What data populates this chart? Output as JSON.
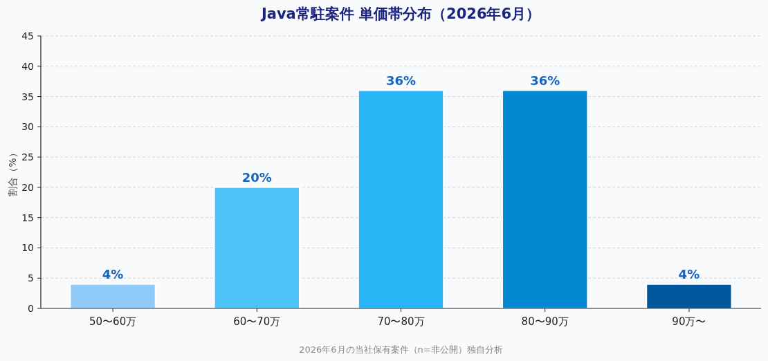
{
  "chart_data": {
    "type": "bar",
    "title": "Java常駐案件 単価帯分布（2026年6月）",
    "ylabel": "割合（%）",
    "annotations": [
      "2026年6月の当社保有案件（n=非公開）独自分析"
    ],
    "categories": [
      "50〜60万",
      "60〜70万",
      "70〜80万",
      "80〜90万",
      "90万〜"
    ],
    "values": [
      4,
      20,
      36,
      36,
      4
    ],
    "colors": [
      "#90caf9",
      "#4fc3f7",
      "#29b6f6",
      "#0288d1",
      "#01579b"
    ],
    "value_labels": [
      "4%",
      "20%",
      "36%",
      "36%",
      "4%"
    ],
    "ylim": [
      0,
      45
    ],
    "yticks": [
      0,
      5,
      10,
      15,
      20,
      25,
      30,
      35,
      40,
      45
    ],
    "grid": "y"
  }
}
